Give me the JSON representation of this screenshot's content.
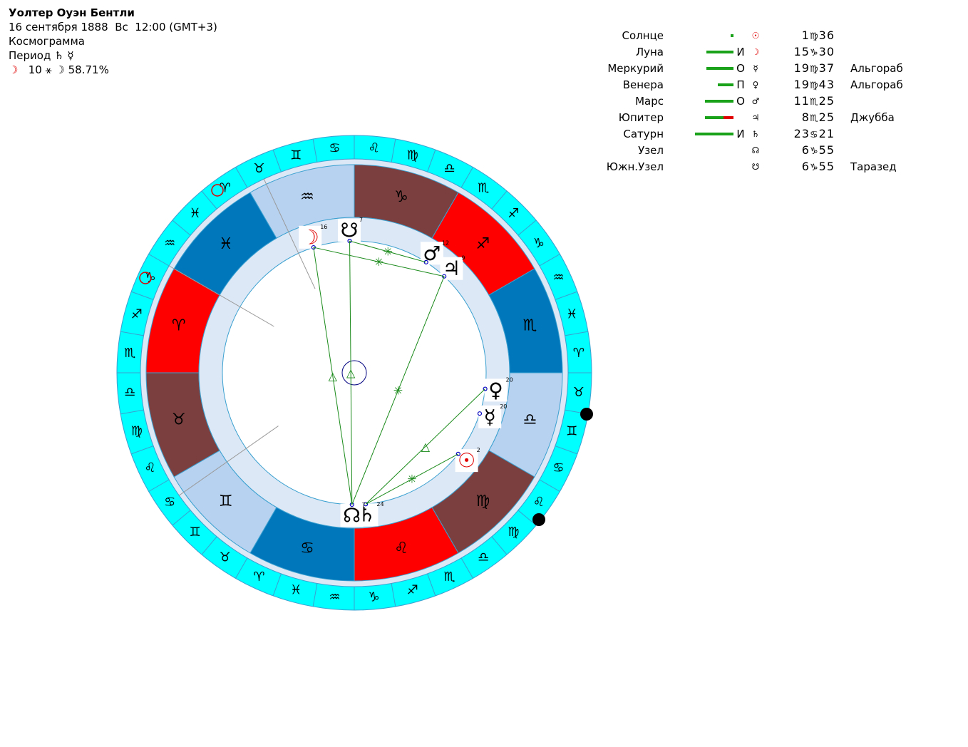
{
  "header": {
    "name": "Уолтер Оуэн Бентли",
    "date": "16 сентября 1888",
    "weekday": "Вс",
    "time": "12:00 (GMT+3)",
    "chart_kind": "Космограмма",
    "period_label": "Период",
    "period_symbols": "♄ ☿",
    "moon_line": {
      "moon": "☽",
      "day": "10",
      "symbols": "⚹ ☽",
      "percent": "58.71%"
    }
  },
  "planets": [
    {
      "name": "Солнце",
      "dignity": "",
      "symbol": "☉",
      "deg": "1",
      "sign": "♍",
      "min": "36",
      "star": "",
      "color": "#e00000",
      "bars": [
        {
          "c": "g",
          "w": 4
        }
      ]
    },
    {
      "name": "Луна",
      "dignity": "И",
      "symbol": "☽",
      "deg": "15",
      "sign": "♑",
      "min": "30",
      "star": "",
      "color": "#e00000",
      "bars": [
        {
          "c": "g",
          "w": 38
        }
      ]
    },
    {
      "name": "Меркурий",
      "dignity": "О",
      "symbol": "☿",
      "deg": "19",
      "sign": "♍",
      "min": "37",
      "star": "Альгораб",
      "color": "#000000",
      "bars": [
        {
          "c": "g",
          "w": 38
        }
      ]
    },
    {
      "name": "Венера",
      "dignity": "П",
      "symbol": "♀",
      "deg": "19",
      "sign": "♍",
      "min": "43",
      "star": "Альгораб",
      "color": "#000000",
      "bars": [
        {
          "c": "g",
          "w": 22
        }
      ]
    },
    {
      "name": "Марс",
      "dignity": "О",
      "symbol": "♂",
      "deg": "11",
      "sign": "♏",
      "min": "25",
      "star": "",
      "color": "#000000",
      "bars": [
        {
          "c": "g",
          "w": 40
        }
      ]
    },
    {
      "name": "Юпитер",
      "dignity": "",
      "symbol": "♃",
      "deg": "8",
      "sign": "♏",
      "min": "25",
      "star": "Джубба",
      "color": "#000000",
      "bars": [
        {
          "c": "g",
          "w": 26
        },
        {
          "c": "r",
          "w": 14
        }
      ]
    },
    {
      "name": "Сатурн",
      "dignity": "И",
      "symbol": "♄",
      "deg": "23",
      "sign": "♋",
      "min": "21",
      "star": "",
      "color": "#000000",
      "bars": [
        {
          "c": "g",
          "w": 54
        }
      ]
    },
    {
      "name": "Узел",
      "dignity": "",
      "symbol": "☊",
      "deg": "6",
      "sign": "♑",
      "min": "55",
      "star": "",
      "color": "#000000",
      "bars": []
    },
    {
      "name": "Южн.Узел",
      "dignity": "",
      "symbol": "☋",
      "deg": "6",
      "sign": "♑",
      "min": "55",
      "star": "Таразед",
      "color": "#000000",
      "bars": []
    }
  ],
  "wheel": {
    "signs": [
      {
        "glyph": "♑",
        "color": "#7b3f3f"
      },
      {
        "glyph": "♐",
        "color": "#ff0000"
      },
      {
        "glyph": "♏",
        "color": "#0077bb"
      },
      {
        "glyph": "♎",
        "color": "#b7d2f0"
      },
      {
        "glyph": "♍",
        "color": "#7b3f3f"
      },
      {
        "glyph": "♌",
        "color": "#ff0000"
      },
      {
        "glyph": "♋",
        "color": "#0077bb"
      },
      {
        "glyph": "♊",
        "color": "#b7d2f0"
      },
      {
        "glyph": "♉",
        "color": "#7b3f3f"
      },
      {
        "glyph": "♈",
        "color": "#ff0000"
      },
      {
        "glyph": "♓",
        "color": "#0077bb"
      },
      {
        "glyph": "♒",
        "color": "#b7d2f0"
      }
    ],
    "outer_ring_color": "#00ffff",
    "outer_ring_glyphs": [
      "♌",
      "♍",
      "♎",
      "♏",
      "♐",
      "♑",
      "♒",
      "♓",
      "♈",
      "♉",
      "♊",
      "♋",
      "♌",
      "♍",
      "♎",
      "♏",
      "♐",
      "♑",
      "♒",
      "♓",
      "♈",
      "♉",
      "♊",
      "♋",
      "♌",
      "♍",
      "♎",
      "♏",
      "♐",
      "♑",
      "♒",
      "♓",
      "♈",
      "♉",
      "♊",
      "♋"
    ],
    "placed_planets": [
      {
        "glyph": "☽",
        "label": "16",
        "color": "#e00000"
      },
      {
        "glyph": "☋",
        "label": "7",
        "color": "#000000"
      },
      {
        "glyph": "♂",
        "label": "12",
        "color": "#000000"
      },
      {
        "glyph": "♃",
        "label": "9",
        "color": "#000000"
      },
      {
        "glyph": "♀",
        "label": "20",
        "color": "#000000"
      },
      {
        "glyph": "☿",
        "label": "20",
        "color": "#000000"
      },
      {
        "glyph": "☉",
        "label": "2",
        "color": "#e00000"
      },
      {
        "glyph": "♄",
        "label": "24",
        "color": "#000000"
      },
      {
        "glyph": "☊",
        "label": "7",
        "color": "#000000"
      }
    ],
    "aspect_color": "#1a8a1a",
    "aspects": [
      {
        "glyph": "✳"
      },
      {
        "glyph": "✳"
      },
      {
        "glyph": "△"
      },
      {
        "glyph": "△"
      },
      {
        "glyph": "△"
      },
      {
        "glyph": "✳"
      },
      {
        "glyph": "✳"
      }
    ]
  }
}
